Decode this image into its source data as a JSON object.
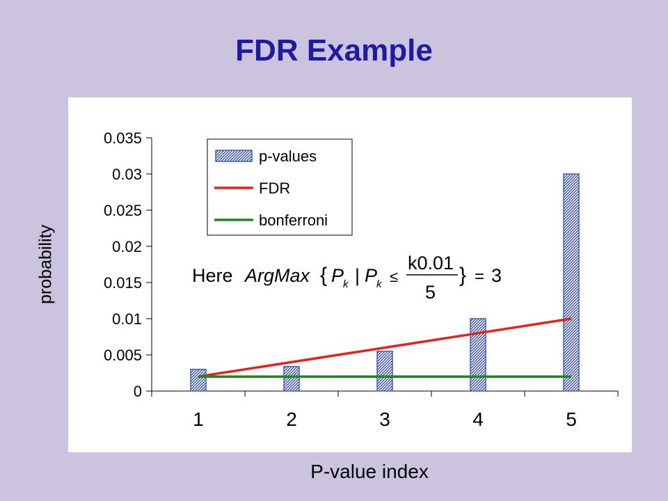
{
  "slide": {
    "title": "FDR Example"
  },
  "chart_data": {
    "type": "bar",
    "title": "",
    "xlabel": "P-value index",
    "ylabel": "probability",
    "categories": [
      "1",
      "2",
      "3",
      "4",
      "5"
    ],
    "ylim": [
      0,
      0.035
    ],
    "yticks": [
      "0",
      "0.005",
      "0.01",
      "0.015",
      "0.02",
      "0.025",
      "0.03",
      "0.035"
    ],
    "grid": false,
    "legend_position": "top-left",
    "series": [
      {
        "name": "p-values",
        "type": "bar",
        "values": [
          0.003,
          0.0034,
          0.0055,
          0.01,
          0.03
        ],
        "color": "#3a5fcd"
      },
      {
        "name": "FDR",
        "type": "line",
        "values": [
          0.002,
          0.004,
          0.006,
          0.008,
          0.01
        ],
        "color": "#e8201c"
      },
      {
        "name": "bonferroni",
        "type": "line",
        "values": [
          0.002,
          0.002,
          0.002,
          0.002,
          0.002
        ],
        "color": "#1a8a1a"
      }
    ],
    "annotation": {
      "prefix": "Here",
      "func": "ArgMax",
      "open_brace": "{",
      "p_var": "P",
      "sub": "k",
      "bar": "|",
      "leq": "≤",
      "numerator": "k0.01",
      "denominator": "5",
      "close_brace": "}",
      "equals": "=",
      "result": "3"
    }
  }
}
